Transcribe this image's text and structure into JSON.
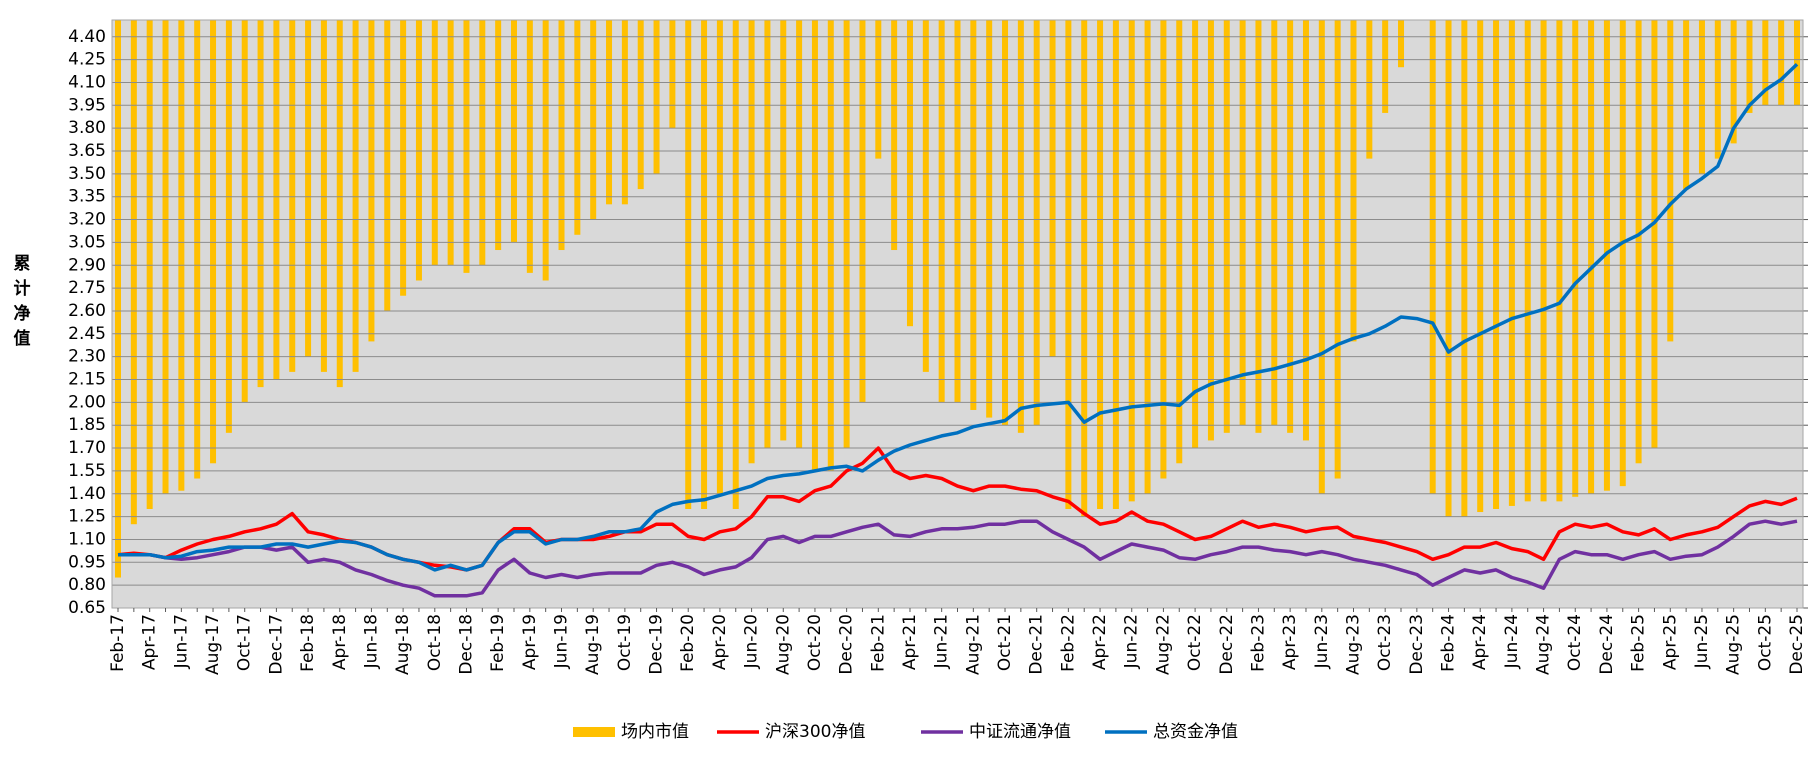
{
  "chart_data": {
    "type": "line",
    "y_label": "累计净值",
    "categories": [
      "Feb-17",
      null,
      "Apr-17",
      null,
      "Jun-17",
      null,
      "Aug-17",
      null,
      "Oct-17",
      null,
      "Dec-17",
      null,
      "Feb-18",
      null,
      "Apr-18",
      null,
      "Jun-18",
      null,
      "Aug-18",
      null,
      "Oct-18",
      null,
      "Dec-18",
      null,
      "Feb-19",
      null,
      "Apr-19",
      null,
      "Jun-19",
      null,
      "Aug-19",
      null,
      "Oct-19",
      null,
      "Dec-19",
      null,
      "Feb-20",
      null,
      "Apr-20",
      null,
      "Jun-20",
      null,
      "Aug-20",
      null,
      "Oct-20",
      null,
      "Dec-20",
      null,
      "Feb-21",
      null,
      "Apr-21",
      null,
      "Jun-21",
      null,
      "Aug-21",
      null,
      "Oct-21",
      null,
      "Dec-21",
      null,
      "Feb-22",
      null,
      "Apr-22",
      null,
      "Jun-22",
      null,
      "Aug-22",
      null,
      "Oct-22",
      null,
      "Dec-22",
      null,
      "Feb-23",
      null,
      "Apr-23",
      null,
      "Jun-23",
      null,
      "Aug-23",
      null,
      "Oct-23",
      null,
      "Dec-23",
      null,
      "Feb-24",
      null,
      "Apr-24",
      null,
      "Jun-24",
      null,
      "Aug-24",
      null,
      "Oct-24",
      null,
      "Dec-24",
      null,
      "Feb-25",
      null,
      "Apr-25",
      null,
      "Jun-25",
      null,
      "Aug-25",
      null,
      "Oct-25",
      null,
      "Dec-25"
    ],
    "series": [
      {
        "name": "场内市值",
        "type": "bar",
        "color": "#ffc000",
        "values": [
          0.85,
          1.2,
          1.3,
          1.4,
          1.42,
          1.5,
          1.6,
          1.8,
          2.0,
          2.1,
          2.15,
          2.2,
          2.3,
          2.2,
          2.1,
          2.2,
          2.4,
          2.6,
          2.7,
          2.8,
          2.9,
          2.9,
          2.85,
          2.9,
          3.0,
          3.05,
          2.85,
          2.8,
          3.0,
          3.1,
          3.2,
          3.3,
          3.3,
          3.4,
          3.5,
          3.8,
          1.3,
          1.3,
          1.4,
          1.3,
          1.6,
          1.7,
          1.75,
          1.7,
          1.55,
          1.55,
          1.7,
          2.0,
          3.6,
          3.0,
          2.5,
          2.2,
          2.0,
          2.0,
          1.95,
          1.9,
          1.85,
          1.8,
          1.85,
          2.3,
          1.3,
          1.25,
          1.3,
          1.3,
          1.35,
          1.4,
          1.5,
          1.6,
          1.7,
          1.75,
          1.8,
          1.85,
          1.8,
          1.85,
          1.8,
          1.75,
          1.4,
          1.5,
          2.4,
          3.6,
          3.9,
          4.2,
          4.51,
          1.4,
          1.25,
          1.25,
          1.28,
          1.3,
          1.32,
          1.35,
          1.35,
          1.35,
          1.38,
          1.4,
          1.42,
          1.45,
          1.6,
          1.7,
          2.4,
          3.4,
          3.5,
          3.6,
          3.7,
          3.9,
          3.95,
          3.95,
          3.95
        ]
      },
      {
        "name": "沪深300净值",
        "color": "#ff0000",
        "values": [
          1.0,
          1.01,
          1.0,
          0.98,
          1.03,
          1.07,
          1.1,
          1.12,
          1.15,
          1.17,
          1.2,
          1.27,
          1.15,
          1.13,
          1.1,
          1.08,
          1.05,
          1.0,
          0.97,
          0.95,
          0.93,
          0.92,
          0.9,
          0.93,
          1.08,
          1.17,
          1.17,
          1.08,
          1.1,
          1.1,
          1.1,
          1.12,
          1.15,
          1.15,
          1.2,
          1.2,
          1.12,
          1.1,
          1.15,
          1.17,
          1.25,
          1.38,
          1.38,
          1.35,
          1.42,
          1.45,
          1.55,
          1.6,
          1.7,
          1.55,
          1.5,
          1.52,
          1.5,
          1.45,
          1.42,
          1.45,
          1.45,
          1.43,
          1.42,
          1.38,
          1.35,
          1.27,
          1.2,
          1.22,
          1.28,
          1.22,
          1.2,
          1.15,
          1.1,
          1.12,
          1.17,
          1.22,
          1.18,
          1.2,
          1.18,
          1.15,
          1.17,
          1.18,
          1.12,
          1.1,
          1.08,
          1.05,
          1.02,
          0.97,
          1.0,
          1.05,
          1.05,
          1.08,
          1.04,
          1.02,
          0.97,
          1.15,
          1.2,
          1.18,
          1.2,
          1.15,
          1.13,
          1.17,
          1.1,
          1.13,
          1.15,
          1.18,
          1.25,
          1.32,
          1.35,
          1.33,
          1.37
        ]
      },
      {
        "name": "中证流通净值",
        "color": "#7030a0",
        "values": [
          1.0,
          1.0,
          1.0,
          0.98,
          0.97,
          0.98,
          1.0,
          1.02,
          1.05,
          1.05,
          1.03,
          1.05,
          0.95,
          0.97,
          0.95,
          0.9,
          0.87,
          0.83,
          0.8,
          0.78,
          0.73,
          0.73,
          0.73,
          0.75,
          0.9,
          0.97,
          0.88,
          0.85,
          0.87,
          0.85,
          0.87,
          0.88,
          0.88,
          0.88,
          0.93,
          0.95,
          0.92,
          0.87,
          0.9,
          0.92,
          0.98,
          1.1,
          1.12,
          1.08,
          1.12,
          1.12,
          1.15,
          1.18,
          1.2,
          1.13,
          1.12,
          1.15,
          1.17,
          1.17,
          1.18,
          1.2,
          1.2,
          1.22,
          1.22,
          1.15,
          1.1,
          1.05,
          0.97,
          1.02,
          1.07,
          1.05,
          1.03,
          0.98,
          0.97,
          1.0,
          1.02,
          1.05,
          1.05,
          1.03,
          1.02,
          1.0,
          1.02,
          1.0,
          0.97,
          0.95,
          0.93,
          0.9,
          0.87,
          0.8,
          0.85,
          0.9,
          0.88,
          0.9,
          0.85,
          0.82,
          0.78,
          0.97,
          1.02,
          1.0,
          1.0,
          0.97,
          1.0,
          1.02,
          0.97,
          0.99,
          1.0,
          1.05,
          1.12,
          1.2,
          1.22,
          1.2,
          1.22
        ]
      },
      {
        "name": "总资金净值",
        "color": "#0070c0",
        "values": [
          1.0,
          1.0,
          1.0,
          0.98,
          0.99,
          1.02,
          1.03,
          1.05,
          1.05,
          1.05,
          1.07,
          1.07,
          1.05,
          1.07,
          1.09,
          1.08,
          1.05,
          1.0,
          0.97,
          0.95,
          0.9,
          0.93,
          0.9,
          0.93,
          1.08,
          1.15,
          1.15,
          1.07,
          1.1,
          1.1,
          1.12,
          1.15,
          1.15,
          1.17,
          1.28,
          1.33,
          1.35,
          1.36,
          1.39,
          1.42,
          1.45,
          1.5,
          1.52,
          1.53,
          1.55,
          1.57,
          1.58,
          1.55,
          1.62,
          1.68,
          1.72,
          1.75,
          1.78,
          1.8,
          1.84,
          1.86,
          1.88,
          1.96,
          1.98,
          1.99,
          2.0,
          1.87,
          1.93,
          1.95,
          1.97,
          1.98,
          1.99,
          1.98,
          2.07,
          2.12,
          2.15,
          2.18,
          2.2,
          2.22,
          2.25,
          2.28,
          2.32,
          2.38,
          2.42,
          2.45,
          2.5,
          2.56,
          2.55,
          2.52,
          2.33,
          2.4,
          2.45,
          2.5,
          2.55,
          2.58,
          2.61,
          2.65,
          2.78,
          2.88,
          2.98,
          3.05,
          3.1,
          3.18,
          3.3,
          3.4,
          3.47,
          3.55,
          3.8,
          3.95,
          4.05,
          4.12,
          4.22
        ]
      }
    ],
    "ylim": [
      0.65,
      4.51
    ],
    "yticks": [
      0.65,
      {
        "value": 0.8,
        "label": "0.80"
      },
      0.95,
      {
        "value": 1.1,
        "label": "1.10"
      },
      1.25,
      {
        "value": 1.4,
        "label": "1.40"
      },
      1.55,
      {
        "value": 1.7,
        "label": "1.70"
      },
      1.85,
      {
        "value": 2,
        "label": "2.00"
      },
      2.15,
      {
        "value": 2.3,
        "label": "2.30"
      },
      2.45,
      {
        "value": 2.6,
        "label": "2.60"
      },
      2.75,
      {
        "value": 2.9,
        "label": "2.90"
      },
      3.05,
      {
        "value": 3.2,
        "label": "3.20"
      },
      3.35,
      {
        "value": 3.5,
        "label": "3.50"
      },
      3.65,
      {
        "value": 3.8,
        "label": "3.80"
      },
      3.95,
      {
        "value": 4.1,
        "label": "4.10"
      },
      4.25,
      {
        "value": 4.4,
        "label": "4.40"
      }
    ],
    "grid": true,
    "legend": "bottom"
  }
}
